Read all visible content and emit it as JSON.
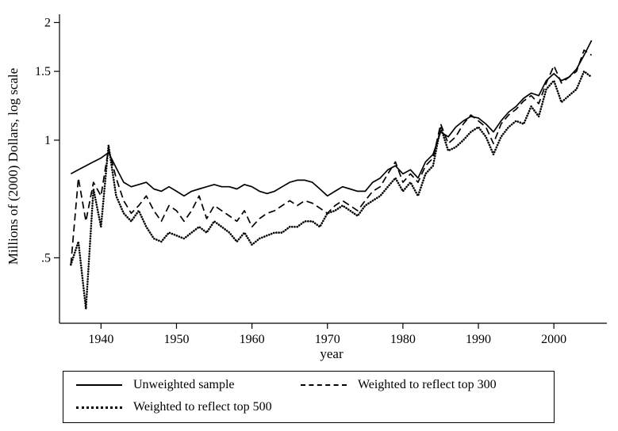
{
  "colors": {
    "foreground": "#000000",
    "background": "#ffffff"
  },
  "chart_data": {
    "type": "line",
    "title": "",
    "xlabel": "year",
    "ylabel": "Millions of (2000) Dollars, log scale",
    "y_scale": "log",
    "xlim": [
      1934.5,
      2006.5
    ],
    "ylim": [
      0.34,
      2.1
    ],
    "x_ticks": [
      1940,
      1950,
      1960,
      1970,
      1980,
      1990,
      2000
    ],
    "y_ticks": [
      {
        "value": 2,
        "label": "2"
      },
      {
        "value": 1.5,
        "label": "1.5"
      },
      {
        "value": 1,
        "label": "1"
      },
      {
        "value": 0.5,
        "label": ".5"
      }
    ],
    "grid": false,
    "legend_position": "bottom",
    "years": [
      1936,
      1937,
      1938,
      1939,
      1940,
      1941,
      1942,
      1943,
      1944,
      1945,
      1946,
      1947,
      1948,
      1949,
      1950,
      1951,
      1952,
      1953,
      1954,
      1955,
      1956,
      1957,
      1958,
      1959,
      1960,
      1961,
      1962,
      1963,
      1964,
      1965,
      1966,
      1967,
      1968,
      1969,
      1970,
      1971,
      1972,
      1973,
      1974,
      1975,
      1976,
      1977,
      1978,
      1979,
      1980,
      1981,
      1982,
      1983,
      1984,
      1985,
      1986,
      1987,
      1988,
      1989,
      1990,
      1991,
      1992,
      1993,
      1994,
      1995,
      1996,
      1997,
      1998,
      1999,
      2000,
      2001,
      2002,
      2003,
      2004,
      2005
    ],
    "series": [
      {
        "name": "Unweighted sample",
        "style": "solid",
        "values": [
          0.82,
          0.84,
          0.86,
          0.88,
          0.9,
          0.93,
          0.85,
          0.78,
          0.76,
          0.77,
          0.78,
          0.75,
          0.74,
          0.76,
          0.74,
          0.72,
          0.74,
          0.75,
          0.76,
          0.77,
          0.76,
          0.76,
          0.75,
          0.77,
          0.76,
          0.74,
          0.73,
          0.74,
          0.76,
          0.78,
          0.79,
          0.79,
          0.78,
          0.75,
          0.72,
          0.74,
          0.76,
          0.75,
          0.74,
          0.74,
          0.78,
          0.8,
          0.84,
          0.86,
          0.82,
          0.84,
          0.8,
          0.88,
          0.92,
          1.05,
          1.02,
          1.08,
          1.12,
          1.15,
          1.14,
          1.1,
          1.05,
          1.12,
          1.18,
          1.22,
          1.28,
          1.32,
          1.3,
          1.42,
          1.48,
          1.42,
          1.45,
          1.52,
          1.65,
          1.8
        ]
      },
      {
        "name": "Weighted to reflect top 300",
        "style": "dashed",
        "values": [
          0.48,
          0.8,
          0.62,
          0.78,
          0.72,
          0.95,
          0.8,
          0.7,
          0.65,
          0.68,
          0.72,
          0.66,
          0.62,
          0.68,
          0.66,
          0.62,
          0.66,
          0.72,
          0.63,
          0.68,
          0.66,
          0.64,
          0.62,
          0.66,
          0.6,
          0.63,
          0.65,
          0.66,
          0.68,
          0.7,
          0.68,
          0.7,
          0.69,
          0.67,
          0.65,
          0.68,
          0.7,
          0.68,
          0.66,
          0.7,
          0.74,
          0.76,
          0.82,
          0.88,
          0.78,
          0.82,
          0.78,
          0.86,
          0.9,
          1.1,
          0.98,
          1.02,
          1.1,
          1.16,
          1.12,
          1.08,
          0.98,
          1.1,
          1.16,
          1.2,
          1.26,
          1.3,
          1.24,
          1.4,
          1.55,
          1.4,
          1.45,
          1.5,
          1.7,
          1.65
        ]
      },
      {
        "name": "Weighted to reflect top 500",
        "style": "dotted",
        "values": [
          0.48,
          0.55,
          0.37,
          0.75,
          0.6,
          0.97,
          0.72,
          0.65,
          0.62,
          0.66,
          0.6,
          0.56,
          0.55,
          0.58,
          0.57,
          0.56,
          0.58,
          0.6,
          0.58,
          0.62,
          0.6,
          0.58,
          0.55,
          0.58,
          0.54,
          0.56,
          0.57,
          0.58,
          0.58,
          0.6,
          0.6,
          0.62,
          0.62,
          0.6,
          0.65,
          0.66,
          0.68,
          0.66,
          0.64,
          0.68,
          0.7,
          0.72,
          0.76,
          0.8,
          0.74,
          0.78,
          0.72,
          0.82,
          0.86,
          1.08,
          0.94,
          0.96,
          1.0,
          1.05,
          1.08,
          1.02,
          0.92,
          1.02,
          1.08,
          1.12,
          1.1,
          1.22,
          1.15,
          1.35,
          1.42,
          1.25,
          1.3,
          1.35,
          1.5,
          1.45
        ]
      }
    ]
  }
}
